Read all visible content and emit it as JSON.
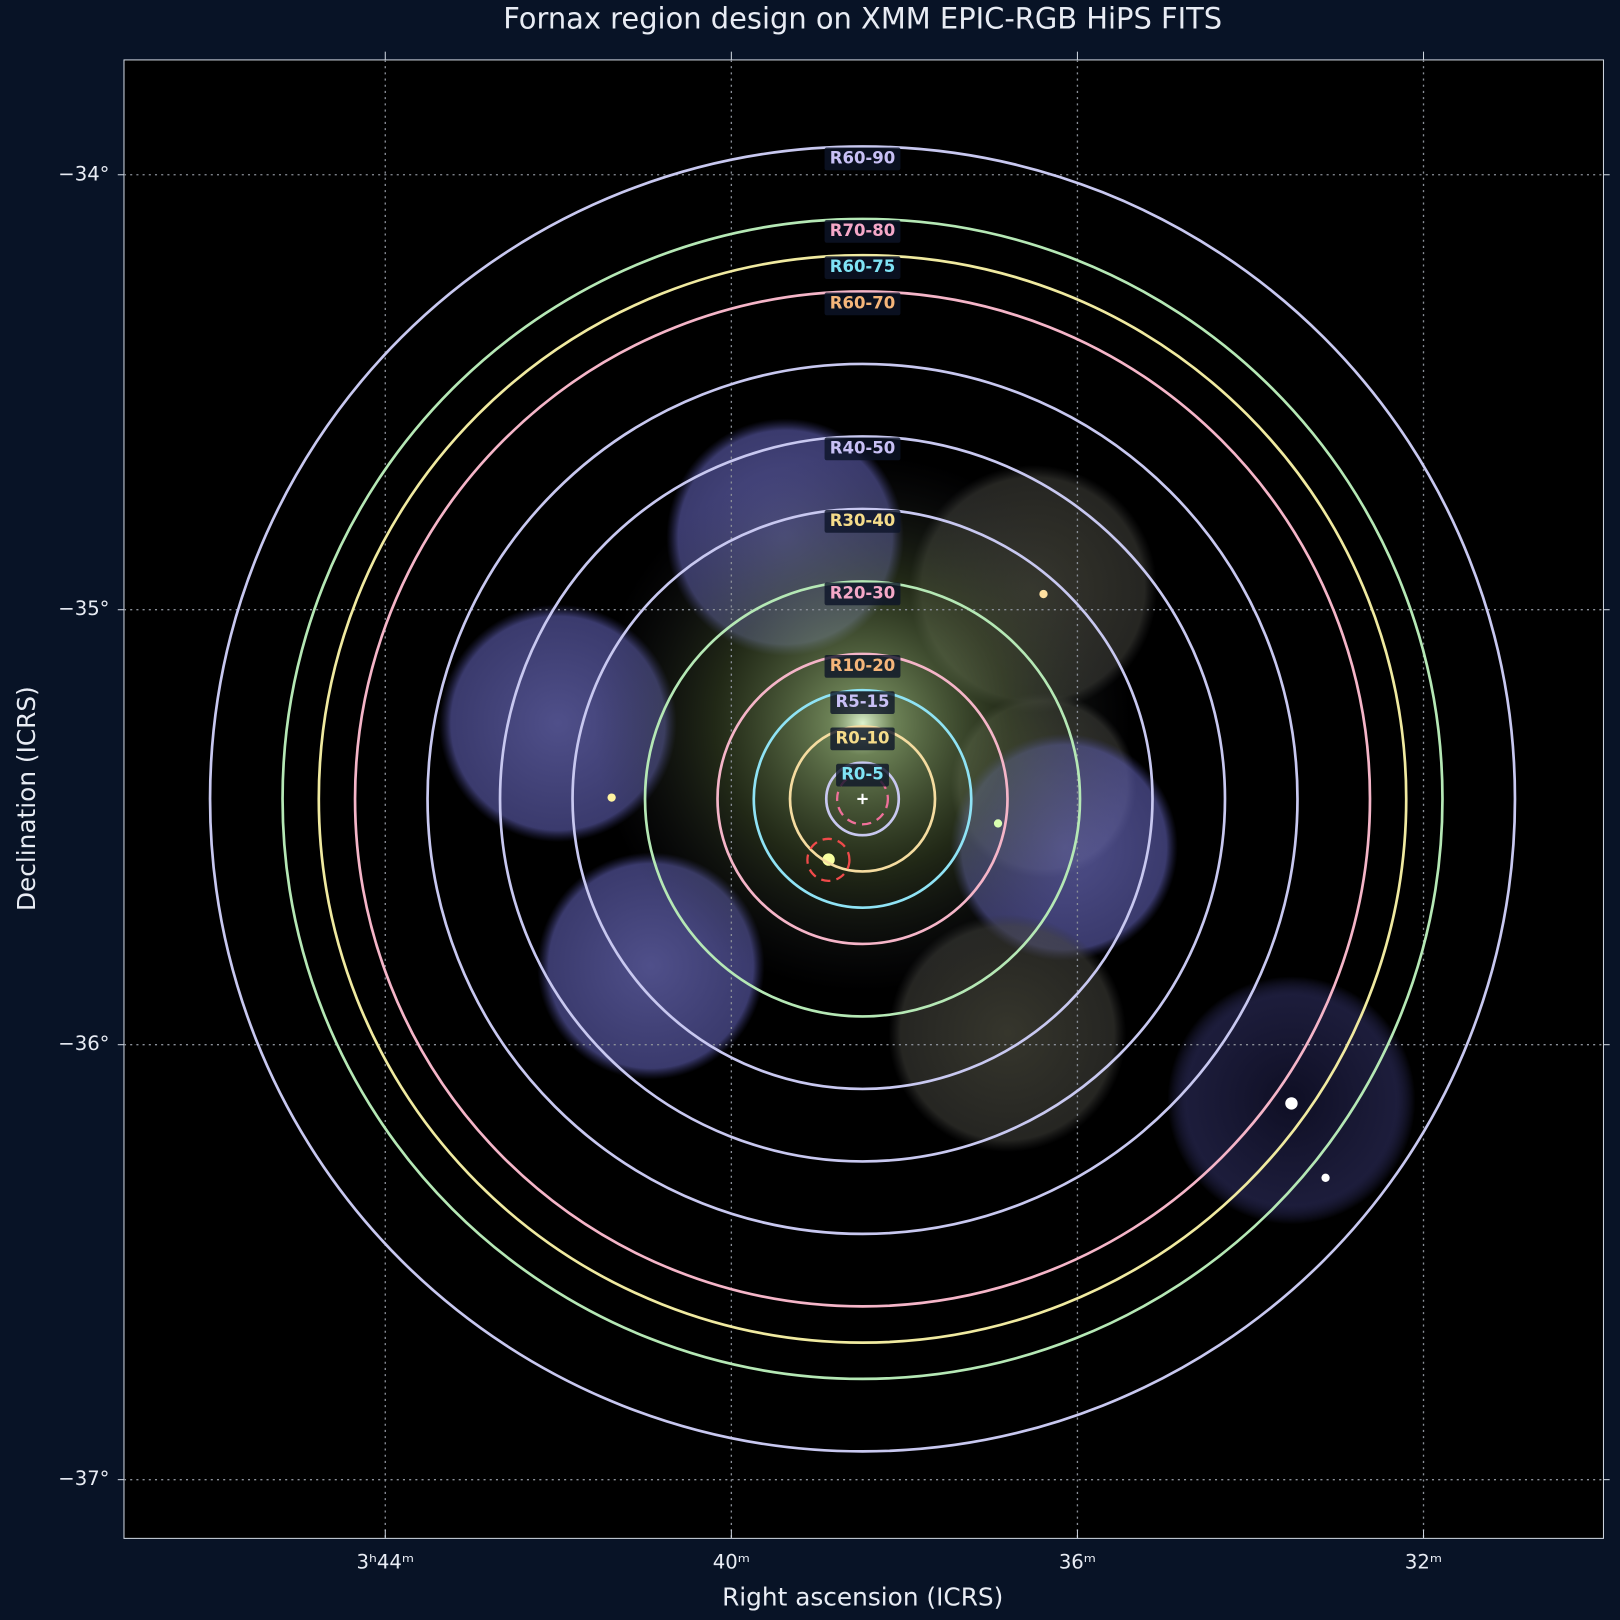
{
  "chart_data": {
    "type": "sky-regions",
    "title": "Fornax region design on XMM EPIC-RGB HiPS FITS",
    "x_label": "Right ascension (ICRS)",
    "y_label": "Declination (ICRS)",
    "xlim": [
      47.02,
      29.92
    ],
    "ylim": [
      -33.736,
      -37.135
    ],
    "xticks": [
      {
        "value": 44,
        "label": "3ʰ44ᵐ"
      },
      {
        "value": 40,
        "label": "40ᵐ"
      },
      {
        "value": 36,
        "label": "36ᵐ"
      },
      {
        "value": 32,
        "label": "32ᵐ"
      }
    ],
    "yticks": [
      {
        "value": -34,
        "label": "−34°"
      },
      {
        "value": -35,
        "label": "−35°"
      },
      {
        "value": -36,
        "label": "−36°"
      },
      {
        "value": -37,
        "label": "−37°"
      }
    ],
    "grid": true,
    "center": {
      "ra": 38.484,
      "dec": -35.435
    },
    "circles": [
      {
        "radius": 5,
        "color": "#c8c8f0"
      },
      {
        "radius": 10,
        "color": "#f5dca0"
      },
      {
        "radius": 15,
        "color": "#8fe3f5"
      },
      {
        "radius": 20,
        "color": "#f5b5c8"
      },
      {
        "radius": 30,
        "color": "#b5e8b5"
      },
      {
        "radius": 40,
        "color": "#c8c8f0"
      },
      {
        "radius": 50,
        "color": "#c8c8f0"
      },
      {
        "radius": 60,
        "color": "#c8c8f0"
      },
      {
        "radius": 70,
        "color": "#f5b5c8"
      },
      {
        "radius": 75,
        "color": "#f0eaa0"
      },
      {
        "radius": 80,
        "color": "#b5e8b5"
      },
      {
        "radius": 90,
        "color": "#c8c8f0"
      }
    ],
    "regions": [
      {
        "label": "R0-5",
        "radius": 5,
        "color": "#7fe3f5"
      },
      {
        "label": "R0-10",
        "radius": 10,
        "color": "#f5dc8a"
      },
      {
        "label": "R5-15",
        "radius": 15,
        "color": "#c8c0f5"
      },
      {
        "label": "R10-20",
        "radius": 20,
        "color": "#f5b57a"
      },
      {
        "label": "R20-30",
        "radius": 30,
        "color": "#f5a8c8"
      },
      {
        "label": "R30-40",
        "radius": 40,
        "color": "#f5dc8a"
      },
      {
        "label": "R40-50",
        "radius": 50,
        "color": "#c8c0f5"
      },
      {
        "label": "R60-70",
        "radius": 70,
        "color": "#f5b57a"
      },
      {
        "label": "R60-75",
        "radius": 75,
        "color": "#7fe3f5"
      },
      {
        "label": "R70-80",
        "radius": 80,
        "color": "#f5a8c8"
      },
      {
        "label": "R60-90",
        "radius": 90,
        "color": "#c8c0f5"
      }
    ],
    "masks": [
      {
        "ra": 38.484,
        "dec": -35.435,
        "radius": 3.5,
        "color": "#f0709a"
      },
      {
        "ra": 38.878,
        "dec": -35.575,
        "radius": 2.9,
        "color": "#f04a4a"
      }
    ]
  }
}
